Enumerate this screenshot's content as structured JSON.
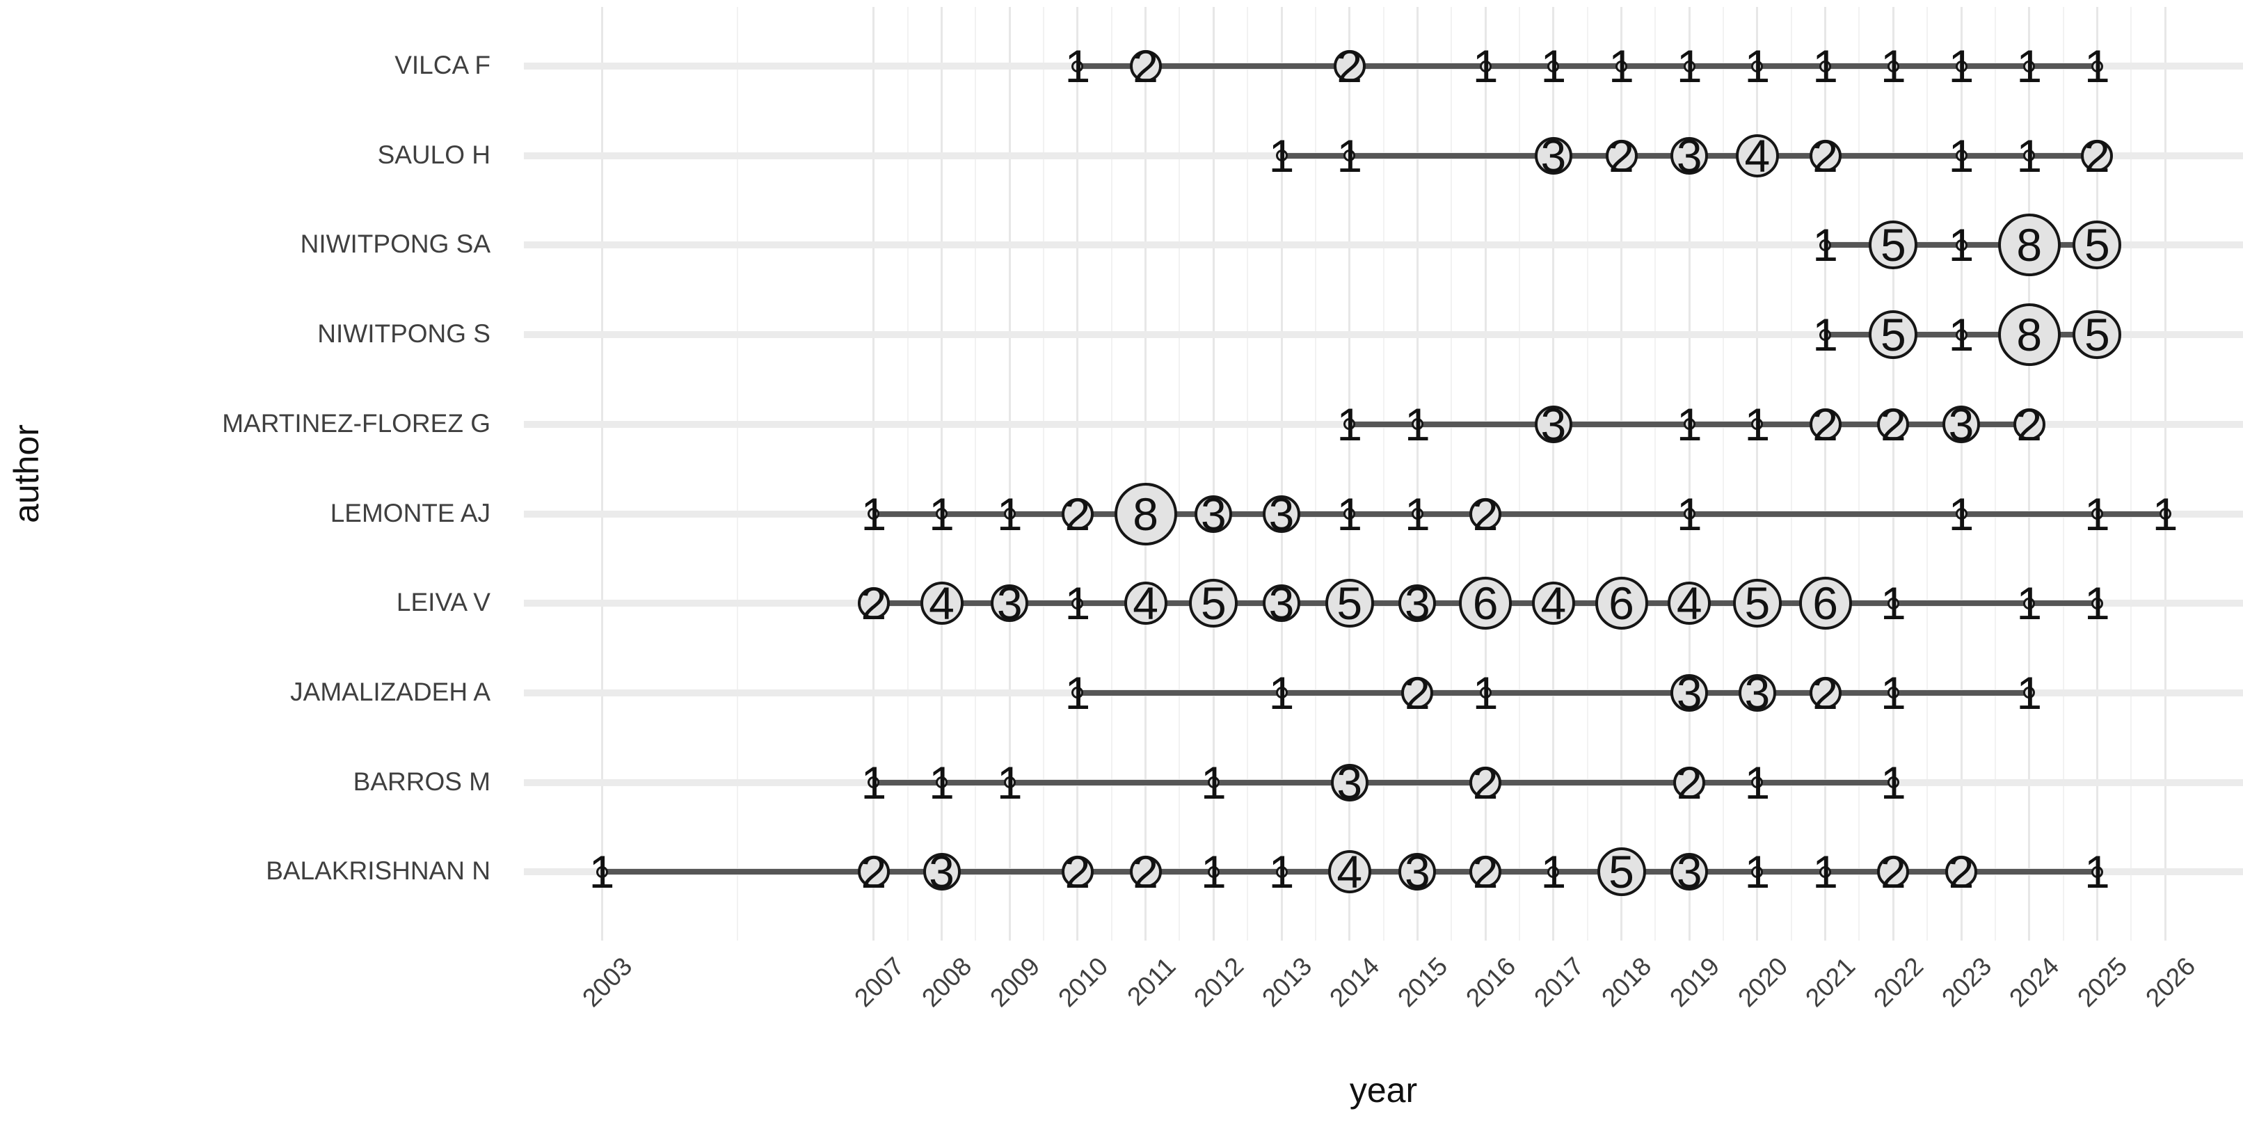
{
  "chart_data": {
    "type": "scatter",
    "subtype": "bubble_timeline",
    "title": "",
    "xlabel": "year",
    "ylabel": "author",
    "legend": "none",
    "grid": true,
    "x_ticks": [
      2003,
      2007,
      2008,
      2009,
      2010,
      2011,
      2012,
      2013,
      2014,
      2015,
      2016,
      2017,
      2018,
      2019,
      2020,
      2021,
      2022,
      2023,
      2024,
      2025,
      2026
    ],
    "xlim": [
      2001.8,
      2027.2
    ],
    "point_format": [
      "year",
      "articles"
    ],
    "bubble_encoding": "bubble area and printed number = articles published that year; line spans first to last publication year",
    "series": [
      {
        "author": "VILCA F",
        "points": [
          [
            2010,
            1
          ],
          [
            2011,
            2
          ],
          [
            2014,
            2
          ],
          [
            2016,
            1
          ],
          [
            2017,
            1
          ],
          [
            2018,
            1
          ],
          [
            2019,
            1
          ],
          [
            2020,
            1
          ],
          [
            2021,
            1
          ],
          [
            2022,
            1
          ],
          [
            2023,
            1
          ],
          [
            2024,
            1
          ],
          [
            2025,
            1
          ]
        ]
      },
      {
        "author": "SAULO H",
        "points": [
          [
            2013,
            1
          ],
          [
            2014,
            1
          ],
          [
            2017,
            3
          ],
          [
            2018,
            2
          ],
          [
            2019,
            3
          ],
          [
            2020,
            4
          ],
          [
            2021,
            2
          ],
          [
            2023,
            1
          ],
          [
            2024,
            1
          ],
          [
            2025,
            2
          ]
        ]
      },
      {
        "author": "NIWITPONG SA",
        "points": [
          [
            2021,
            1
          ],
          [
            2022,
            5
          ],
          [
            2023,
            1
          ],
          [
            2024,
            8
          ],
          [
            2025,
            5
          ]
        ]
      },
      {
        "author": "NIWITPONG S",
        "points": [
          [
            2021,
            1
          ],
          [
            2022,
            5
          ],
          [
            2023,
            1
          ],
          [
            2024,
            8
          ],
          [
            2025,
            5
          ]
        ]
      },
      {
        "author": "MARTINEZ-FLOREZ G",
        "points": [
          [
            2014,
            1
          ],
          [
            2015,
            1
          ],
          [
            2017,
            3
          ],
          [
            2019,
            1
          ],
          [
            2020,
            1
          ],
          [
            2021,
            2
          ],
          [
            2022,
            2
          ],
          [
            2023,
            3
          ],
          [
            2024,
            2
          ]
        ]
      },
      {
        "author": "LEMONTE AJ",
        "points": [
          [
            2007,
            1
          ],
          [
            2008,
            1
          ],
          [
            2009,
            1
          ],
          [
            2010,
            2
          ],
          [
            2011,
            8
          ],
          [
            2012,
            3
          ],
          [
            2013,
            3
          ],
          [
            2014,
            1
          ],
          [
            2015,
            1
          ],
          [
            2016,
            2
          ],
          [
            2019,
            1
          ],
          [
            2023,
            1
          ],
          [
            2025,
            1
          ],
          [
            2026,
            1
          ]
        ]
      },
      {
        "author": "LEIVA V",
        "points": [
          [
            2007,
            2
          ],
          [
            2008,
            4
          ],
          [
            2009,
            3
          ],
          [
            2010,
            1
          ],
          [
            2011,
            4
          ],
          [
            2012,
            5
          ],
          [
            2013,
            3
          ],
          [
            2014,
            5
          ],
          [
            2015,
            3
          ],
          [
            2016,
            6
          ],
          [
            2017,
            4
          ],
          [
            2018,
            6
          ],
          [
            2019,
            4
          ],
          [
            2020,
            5
          ],
          [
            2021,
            6
          ],
          [
            2022,
            1
          ],
          [
            2024,
            1
          ],
          [
            2025,
            1
          ]
        ]
      },
      {
        "author": "JAMALIZADEH A",
        "points": [
          [
            2010,
            1
          ],
          [
            2013,
            1
          ],
          [
            2015,
            2
          ],
          [
            2016,
            1
          ],
          [
            2019,
            3
          ],
          [
            2020,
            3
          ],
          [
            2021,
            2
          ],
          [
            2022,
            1
          ],
          [
            2024,
            1
          ]
        ]
      },
      {
        "author": "BARROS M",
        "points": [
          [
            2007,
            1
          ],
          [
            2008,
            1
          ],
          [
            2009,
            1
          ],
          [
            2012,
            1
          ],
          [
            2014,
            3
          ],
          [
            2016,
            2
          ],
          [
            2019,
            2
          ],
          [
            2020,
            1
          ],
          [
            2022,
            1
          ]
        ]
      },
      {
        "author": "BALAKRISHNAN N",
        "points": [
          [
            2003,
            1
          ],
          [
            2007,
            2
          ],
          [
            2008,
            3
          ],
          [
            2010,
            2
          ],
          [
            2011,
            2
          ],
          [
            2012,
            1
          ],
          [
            2013,
            1
          ],
          [
            2014,
            4
          ],
          [
            2015,
            3
          ],
          [
            2016,
            2
          ],
          [
            2017,
            1
          ],
          [
            2018,
            5
          ],
          [
            2019,
            3
          ],
          [
            2020,
            1
          ],
          [
            2021,
            1
          ],
          [
            2022,
            2
          ],
          [
            2023,
            2
          ],
          [
            2025,
            1
          ]
        ]
      }
    ]
  },
  "style": {
    "background": "#ffffff",
    "grid_major": "#e7e7e7",
    "grid_minor": "#f2f2f2",
    "row_band": "#ebebeb",
    "timeline_color": "#565656",
    "bubble_fill": "#e3e3e3",
    "bubble_stroke": "#161616",
    "bubble_text": "#111111",
    "axis_text": "#3f3f3f",
    "axis_title": "#111111"
  }
}
